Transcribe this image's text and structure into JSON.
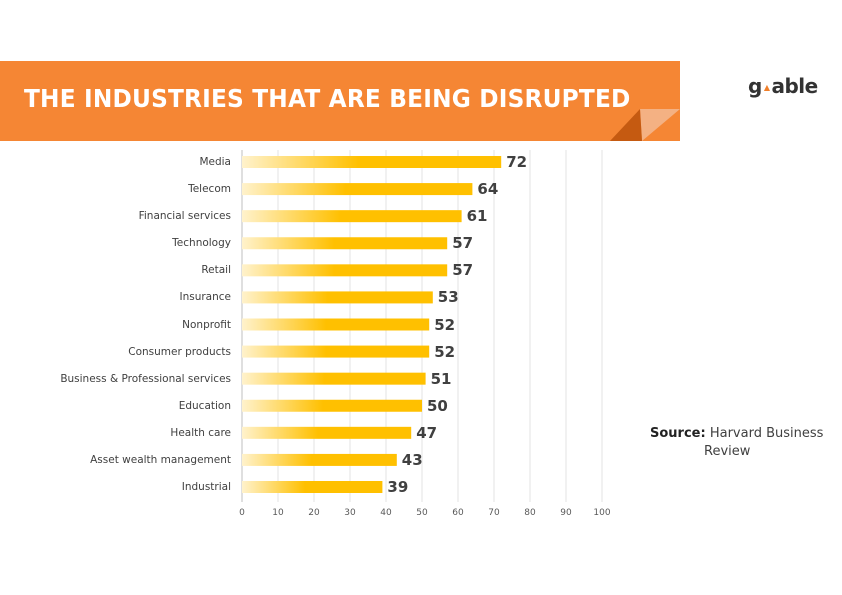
{
  "header": {
    "title": "THE INDUSTRIES THAT ARE BEING DISRUPTED",
    "banner_color": "#f58634",
    "fold_dark_color": "#c55a11",
    "fold_light_color": "#f4b183"
  },
  "logo": {
    "text_left": "g",
    "text_right": "able",
    "accent_color": "#f07f2a"
  },
  "source": {
    "label": "Source:",
    "text_line1": "Harvard Business",
    "text_line2": "Review"
  },
  "chart_data": {
    "type": "bar",
    "orientation": "horizontal",
    "title": "THE INDUSTRIES THAT ARE BEING DISRUPTED",
    "xlabel": "",
    "ylabel": "",
    "categories": [
      "Media",
      "Telecom",
      "Financial services",
      "Technology",
      "Retail",
      "Insurance",
      "Nonprofit",
      "Consumer products",
      "Business & Professional services",
      "Education",
      "Health care",
      "Asset wealth management",
      "Industrial"
    ],
    "values": [
      72,
      64,
      61,
      57,
      57,
      53,
      52,
      52,
      51,
      50,
      47,
      43,
      39
    ],
    "xlim": [
      0,
      100
    ],
    "xticks": [
      "0",
      "10",
      "20",
      "30",
      "40",
      "50",
      "60",
      "70",
      "80",
      "90",
      "100"
    ],
    "grid": true,
    "data_labels": true,
    "bar_color": "#ffc000",
    "bar_gradient_start": "#fff2cc"
  }
}
